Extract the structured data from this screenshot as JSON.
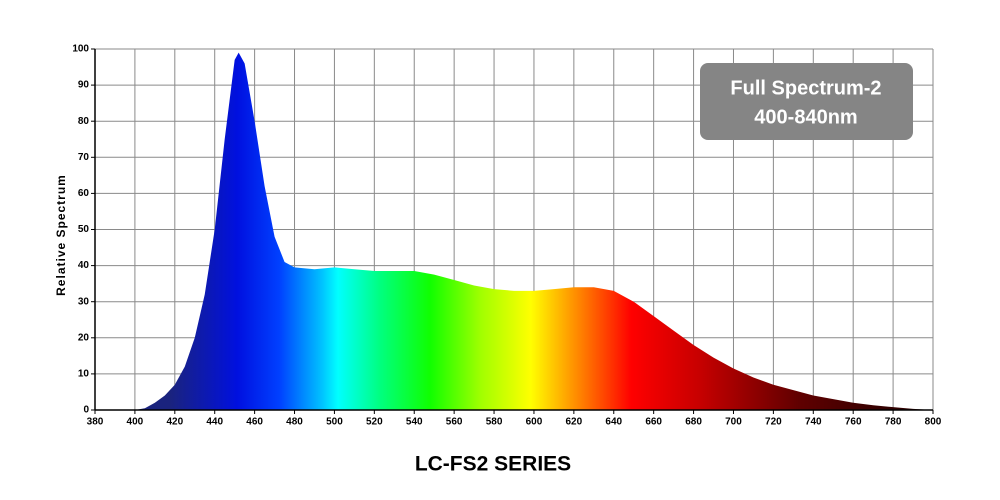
{
  "chart_data": {
    "type": "area",
    "y_label": "Relative Spectrum",
    "annotation": [
      "Full Spectrum-2",
      "400-840nm"
    ],
    "caption": "LC-FS2 SERIES",
    "x": [
      380,
      385,
      390,
      395,
      400,
      405,
      410,
      415,
      420,
      425,
      430,
      435,
      440,
      445,
      450,
      452,
      455,
      460,
      465,
      470,
      475,
      480,
      490,
      500,
      510,
      520,
      530,
      540,
      550,
      560,
      570,
      580,
      590,
      600,
      610,
      620,
      630,
      640,
      650,
      660,
      670,
      680,
      690,
      700,
      710,
      720,
      730,
      740,
      750,
      760,
      770,
      780,
      790,
      800
    ],
    "y": [
      0,
      0,
      0,
      0,
      0,
      0.5,
      2,
      4,
      7,
      12,
      20,
      32,
      50,
      75,
      97,
      99,
      96,
      80,
      62,
      48,
      41,
      39.5,
      39,
      39.5,
      39,
      38.5,
      38.5,
      38.5,
      37.5,
      36,
      34.5,
      33.5,
      33,
      33,
      33.5,
      34,
      34,
      33,
      30,
      26,
      22,
      18,
      14.5,
      11.5,
      9,
      7,
      5.5,
      4,
      3,
      2,
      1.3,
      0.8,
      0.3,
      0
    ],
    "xlim": [
      380,
      800
    ],
    "ylim": [
      0,
      100
    ],
    "xticks": [
      380,
      400,
      420,
      440,
      460,
      480,
      500,
      520,
      540,
      560,
      580,
      600,
      620,
      640,
      660,
      680,
      700,
      720,
      740,
      760,
      780,
      800
    ],
    "yticks": [
      0,
      10,
      20,
      30,
      40,
      50,
      60,
      70,
      80,
      90,
      100
    ],
    "grid": true
  }
}
